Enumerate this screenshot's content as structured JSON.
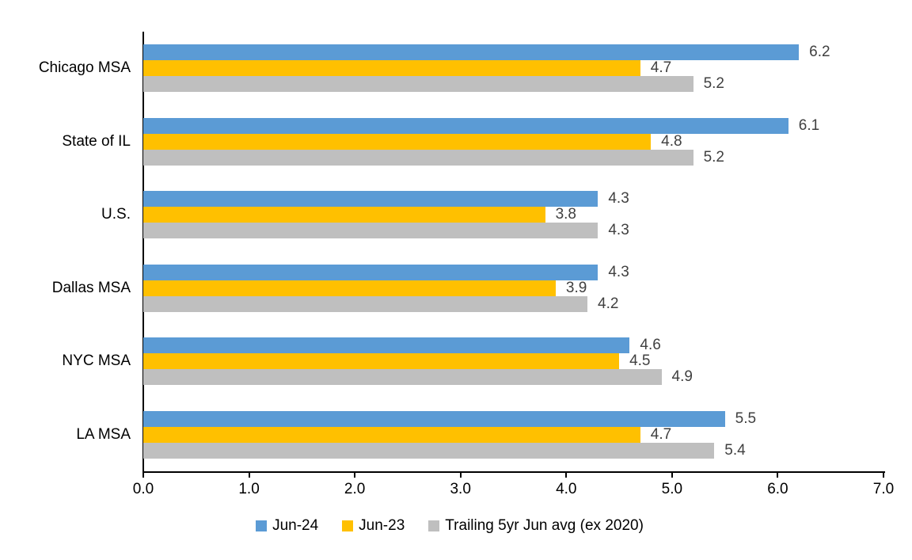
{
  "chart_data": {
    "type": "bar",
    "orientation": "horizontal",
    "title": "",
    "xlabel": "",
    "ylabel": "",
    "categories": [
      "Chicago MSA",
      "State of IL",
      "U.S.",
      "Dallas MSA",
      "NYC MSA",
      "LA MSA"
    ],
    "series": [
      {
        "name": "Jun-24",
        "color": "#5B9BD5",
        "values": [
          6.2,
          6.1,
          4.3,
          4.3,
          4.6,
          5.5
        ]
      },
      {
        "name": "Jun-23",
        "color": "#FFC000",
        "values": [
          4.7,
          4.8,
          3.8,
          3.9,
          4.5,
          4.7
        ]
      },
      {
        "name": "Trailing 5yr Jun avg (ex 2020)",
        "color": "#BFBFBF",
        "values": [
          5.2,
          5.2,
          4.3,
          4.2,
          4.9,
          5.4
        ]
      }
    ],
    "xlim": [
      0,
      7
    ],
    "x_ticks": [
      "0.0",
      "1.0",
      "2.0",
      "3.0",
      "4.0",
      "5.0",
      "6.0",
      "7.0"
    ],
    "value_labels_shown": true,
    "grid": false,
    "legend_position": "bottom"
  },
  "colors": {
    "background": "#FFFFFF",
    "axis": "#000000",
    "category_label": "#000000",
    "tick_label": "#000000",
    "data_label": "#404040"
  }
}
